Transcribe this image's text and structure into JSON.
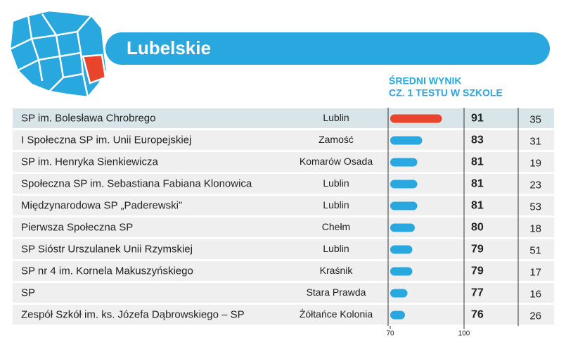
{
  "chart_data": {
    "type": "bar",
    "orientation": "horizontal",
    "title": "Lubelskie",
    "value_header": [
      "ŚREDNI WYNIK",
      "CZ. 1 TESTU W SZKOLE"
    ],
    "categories": [
      "SP im. Bolesława Chrobrego",
      "I Społeczna SP im. Unii Europejskiej",
      "SP im. Henryka Sienkiewicza",
      "Społeczna SP im. Sebastiana Fabiana Klonowica",
      "Międzynarodowa SP „Paderewski”",
      "Pierwsza Społeczna SP",
      "SP Sióstr Urszulanek Unii Rzymskiej",
      "SP nr 4 im. Kornela Makuszyńskiego",
      "SP",
      "Zespół Szkół im. ks. Józefa Dąbrowskiego – SP"
    ],
    "cities": [
      "Lublin",
      "Zamość",
      "Komarów Osada",
      "Lublin",
      "Lublin",
      "Chełm",
      "Lublin",
      "Kraśnik",
      "Stara Prawda",
      "Żółtańce Kolonia"
    ],
    "values": [
      91,
      83,
      81,
      81,
      81,
      80,
      79,
      79,
      77,
      76
    ],
    "ranks": [
      35,
      31,
      19,
      23,
      53,
      18,
      51,
      17,
      16,
      26
    ],
    "colors": [
      "#e8452c",
      "#29a8e0",
      "#29a8e0",
      "#29a8e0",
      "#29a8e0",
      "#29a8e0",
      "#29a8e0",
      "#29a8e0",
      "#29a8e0",
      "#29a8e0"
    ],
    "xlim": [
      70,
      100
    ],
    "xticks": [
      70,
      100
    ]
  }
}
